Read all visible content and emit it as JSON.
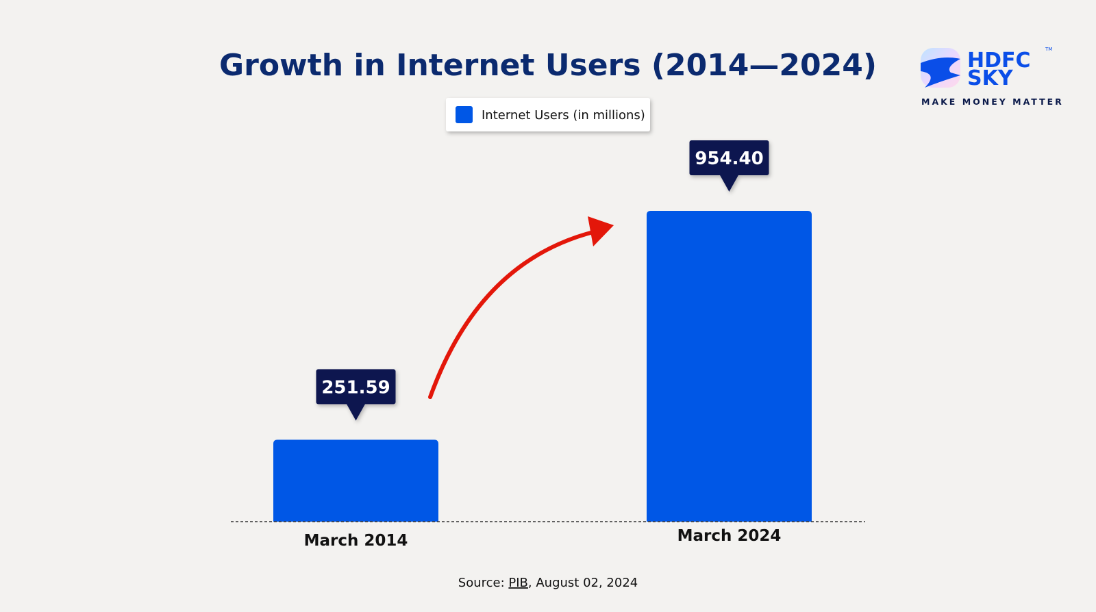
{
  "chart_data": {
    "type": "bar",
    "title": "Growth in Internet Users (2014—2024)",
    "categories": [
      "March 2014",
      "March 2024"
    ],
    "series": [
      {
        "name": "Internet Users (in millions)",
        "values": [
          251.59,
          954.4
        ],
        "color": "#0057e6"
      }
    ],
    "data_labels": [
      "251.59",
      "954.40"
    ],
    "ylim": [
      0,
      954.4
    ],
    "grid": false,
    "legend_placement": "top-center",
    "annotations": [
      "red upward arrow from March 2014 bar to March 2024 bar"
    ]
  },
  "source": {
    "prefix": "Source: ",
    "link": "PIB",
    "suffix": ", August 02, 2024"
  },
  "logo": {
    "line1": "HDFC",
    "line2": "SKY",
    "tagline": "MAKE MONEY MATTER",
    "tm": "TM"
  },
  "colors": {
    "bar": "#0057e6",
    "title": "#0b2a6f",
    "label_box": "#0b1650",
    "arrow": "#e3170a",
    "background": "#f3f2f0"
  }
}
